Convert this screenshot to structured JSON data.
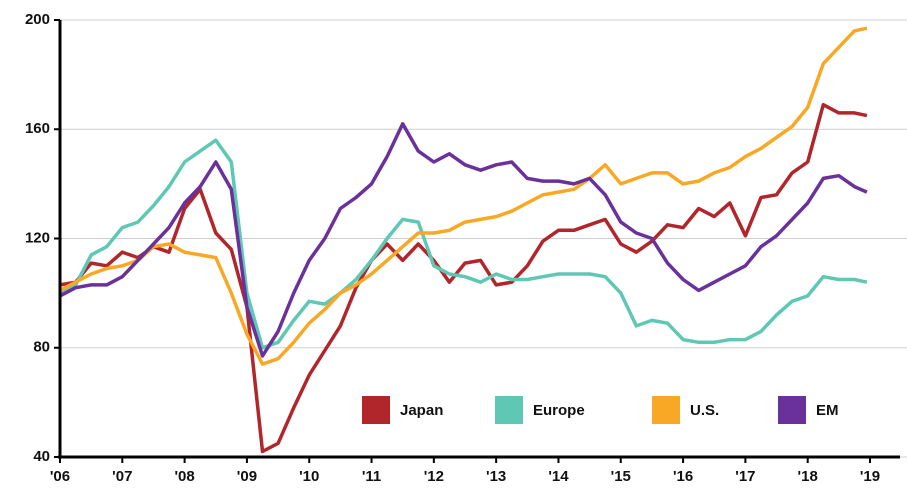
{
  "chart_data": {
    "type": "line",
    "x": [
      2006,
      2006.25,
      2006.5,
      2006.75,
      2007,
      2007.25,
      2007.5,
      2007.75,
      2008,
      2008.25,
      2008.5,
      2008.75,
      2009,
      2009.25,
      2009.5,
      2009.75,
      2010,
      2010.25,
      2010.5,
      2010.75,
      2011,
      2011.25,
      2011.5,
      2011.75,
      2012,
      2012.25,
      2012.5,
      2012.75,
      2013,
      2013.25,
      2013.5,
      2013.75,
      2014,
      2014.25,
      2014.5,
      2014.75,
      2015,
      2015.25,
      2015.5,
      2015.75,
      2016,
      2016.25,
      2016.5,
      2016.75,
      2017,
      2017.25,
      2017.5,
      2017.75,
      2018,
      2018.25,
      2018.5,
      2018.75,
      2018.95
    ],
    "series": [
      {
        "name": "Japan",
        "color": "#b0262b",
        "values": [
          103,
          104,
          111,
          110,
          115,
          113,
          117,
          115,
          131,
          138,
          122,
          116,
          95,
          42,
          45,
          58,
          70,
          79,
          88,
          102,
          112,
          118,
          112,
          118,
          112,
          104,
          111,
          112,
          103,
          104,
          110,
          119,
          123,
          123,
          125,
          127,
          118,
          115,
          119,
          125,
          124,
          131,
          128,
          133,
          121,
          135,
          136,
          144,
          148,
          169,
          166,
          166,
          165
        ]
      },
      {
        "name": "Europe",
        "color": "#5ec8b5",
        "values": [
          100,
          103,
          114,
          117,
          124,
          126,
          132,
          139,
          148,
          152,
          156,
          148,
          100,
          80,
          82,
          90,
          97,
          96,
          100,
          105,
          112,
          120,
          127,
          126,
          110,
          107,
          106,
          104,
          107,
          105,
          105,
          106,
          107,
          107,
          107,
          106,
          100,
          88,
          90,
          89,
          83,
          82,
          82,
          83,
          83,
          86,
          92,
          97,
          99,
          106,
          105,
          105,
          104
        ]
      },
      {
        "name": "U.S.",
        "color": "#f8a825",
        "values": [
          101,
          104,
          107,
          109,
          110,
          112,
          117,
          118,
          115,
          114,
          113,
          100,
          85,
          74,
          76,
          82,
          89,
          94,
          100,
          103,
          107,
          112,
          117,
          122,
          122,
          123,
          126,
          127,
          128,
          130,
          133,
          136,
          137,
          138,
          142,
          147,
          140,
          142,
          144,
          144,
          140,
          141,
          144,
          146,
          150,
          153,
          157,
          161,
          168,
          184,
          190,
          196,
          197
        ]
      },
      {
        "name": "EM",
        "color": "#6b319a",
        "values": [
          99,
          102,
          103,
          103,
          106,
          112,
          118,
          124,
          133,
          139,
          148,
          138,
          95,
          77,
          86,
          100,
          112,
          120,
          131,
          135,
          140,
          150,
          162,
          152,
          148,
          151,
          147,
          145,
          147,
          148,
          142,
          141,
          141,
          140,
          142,
          136,
          126,
          122,
          120,
          111,
          105,
          101,
          104,
          107,
          110,
          117,
          121,
          127,
          133,
          142,
          143,
          139,
          137
        ]
      }
    ],
    "xlim": [
      2006,
      2019
    ],
    "xticks": [
      {
        "value": 2006,
        "label": "'06"
      },
      {
        "value": 2007,
        "label": "'07"
      },
      {
        "value": 2008,
        "label": "'08"
      },
      {
        "value": 2009,
        "label": "'09"
      },
      {
        "value": 2010,
        "label": "'10"
      },
      {
        "value": 2011,
        "label": "'11"
      },
      {
        "value": 2012,
        "label": "'12"
      },
      {
        "value": 2013,
        "label": "'13"
      },
      {
        "value": 2014,
        "label": "'14"
      },
      {
        "value": 2015,
        "label": "'15"
      },
      {
        "value": 2016,
        "label": "'16"
      },
      {
        "value": 2017,
        "label": "'17"
      },
      {
        "value": 2018,
        "label": "'18"
      },
      {
        "value": 2019,
        "label": "'19"
      }
    ],
    "ylim": [
      40,
      200
    ],
    "yticks": [
      40,
      80,
      120,
      160,
      200
    ],
    "grid": true,
    "legend": "bottom"
  }
}
